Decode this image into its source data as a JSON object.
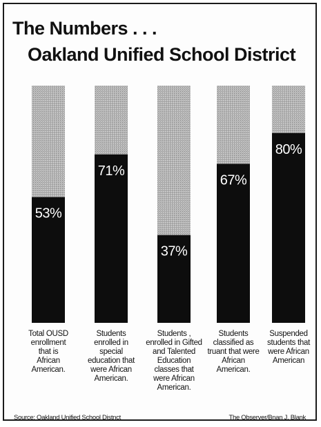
{
  "title_line1": "The Numbers . . .",
  "title_line2": "Oakland Unified School District",
  "chart_data": {
    "type": "bar",
    "stacked_percent": true,
    "ylim": [
      0,
      100
    ],
    "categories": [
      "Total OUSD enrollment that is African American.",
      "Students enrolled in special education that were African American.",
      "Students , enrolled in Gifted and Talented Education classes that were African American.",
      "Students classified as truant that were African American.",
      "Suspended students that were African American"
    ],
    "category_lines": [
      [
        "Total OUSD",
        "enrollment",
        "that  is",
        "African",
        "American."
      ],
      [
        "Students",
        "enrolled in",
        "special",
        "education that",
        "were African",
        "American."
      ],
      [
        "Students ,",
        "enrolled in Gifted",
        "and Talented",
        "Education",
        "classes that",
        "were African",
        "American."
      ],
      [
        "Students",
        "classified as",
        "truant that were",
        "African",
        "American."
      ],
      [
        "Suspended",
        "students that",
        "were African",
        "American"
      ]
    ],
    "values": [
      53,
      71,
      37,
      67,
      80
    ],
    "data_labels": [
      "53%",
      "71%",
      "37%",
      "67%",
      "80%"
    ],
    "colors": {
      "african_american": "#0d0d0d",
      "remainder": "#b4b4b4"
    }
  },
  "footer": {
    "source": "Source: Oakland Unified School Distnct",
    "credit": "The Observer/Bnan J. Blank"
  }
}
